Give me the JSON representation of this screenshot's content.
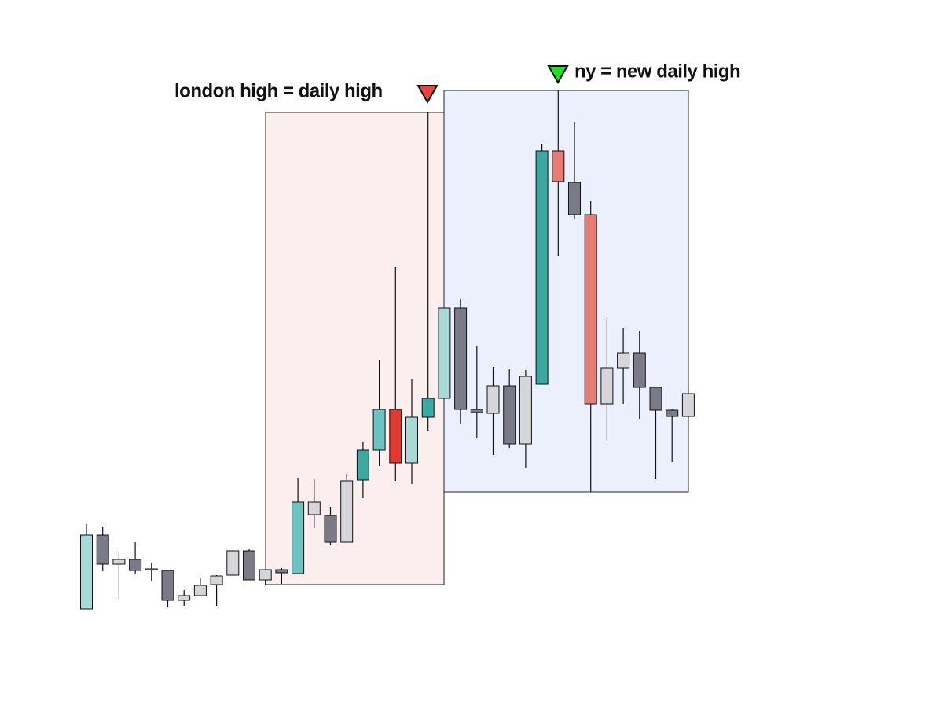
{
  "chart_data": {
    "type": "candlestick",
    "annotations": [
      {
        "text": "london high = daily high",
        "color": "#e8443a"
      },
      {
        "text": "ny = new daily high",
        "color": "#22dd22"
      }
    ],
    "ylim": [
      0,
      900
    ],
    "open": [
      125,
      219,
      182,
      188,
      176,
      174,
      136,
      142,
      156,
      168,
      199,
      162,
      175,
      170,
      245,
      244,
      210,
      289,
      327,
      379,
      311,
      369,
      393,
      508,
      379,
      374,
      409,
      335,
      411,
      708,
      668,
      627,
      386,
      432,
      451,
      407,
      378,
      370
    ],
    "high": [
      233,
      229,
      198,
      210,
      183,
      174,
      149,
      165,
      168,
      200,
      201,
      175,
      177,
      292,
      290,
      255,
      297,
      337,
      442,
      560,
      418,
      757,
      508,
      520,
      460,
      433,
      430,
      429,
      717,
      786,
      745,
      644,
      495,
      482,
      479,
      407,
      379,
      399
    ],
    "low": [
      125,
      173,
      138,
      169,
      160,
      128,
      129,
      142,
      129,
      168,
      162,
      155,
      157,
      170,
      228,
      206,
      210,
      266,
      307,
      288,
      284,
      352,
      393,
      360,
      342,
      321,
      330,
      304,
      411,
      574,
      621,
      274,
      339,
      386,
      367,
      290,
      312,
      370
    ],
    "close": [
      219,
      182,
      188,
      174,
      175,
      136,
      142,
      155,
      167,
      199,
      162,
      175,
      171,
      261,
      261,
      210,
      288,
      327,
      379,
      311,
      369,
      393,
      508,
      379,
      375,
      409,
      335,
      421,
      708,
      669,
      627,
      386,
      432,
      451,
      407,
      378,
      370,
      399
    ],
    "colors": [
      "#a9d9d6",
      "#7b7b88",
      "#d6d6da",
      "#7b7b88",
      "#7b7b88",
      "#7b7b88",
      "#d6d6da",
      "#d6d6da",
      "#d6d6da",
      "#d6d6da",
      "#7b7b88",
      "#d6d6da",
      "#7b7b88",
      "#6cc3c1",
      "#d6d6da",
      "#7b7b88",
      "#d6d6da",
      "#3ba9a2",
      "#6cc3c1",
      "#e0392f",
      "#a9d9d6",
      "#3ba9a2",
      "#a9d9d6",
      "#7b7b88",
      "#7b7b88",
      "#d6d6da",
      "#7b7b88",
      "#d6d6da",
      "#3ba9a2",
      "#e67c74",
      "#7b7b88",
      "#e67c74",
      "#d6d6da",
      "#d6d6da",
      "#7b7b88",
      "#7b7b88",
      "#7b7b88",
      "#d6d6da"
    ]
  }
}
